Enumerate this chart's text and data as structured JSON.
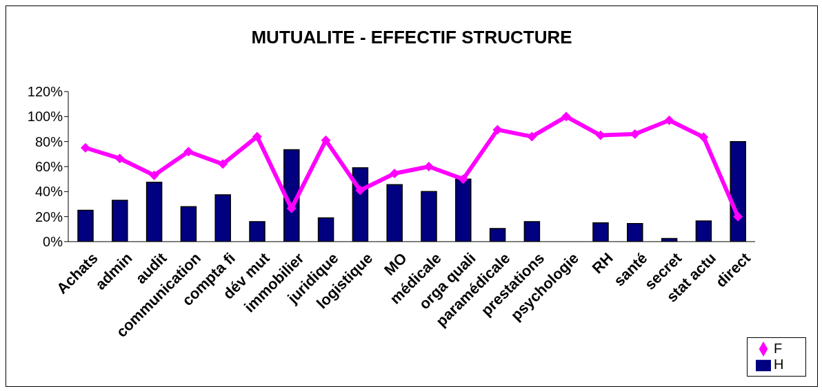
{
  "chart_data": {
    "type": "bar",
    "title": "MUTUALITE - EFFECTIF STRUCTURE",
    "categories": [
      "Achats",
      "admin",
      "audit",
      "communication",
      "compta fi",
      "dév mut",
      "immobilier",
      "juridique",
      "logistique",
      "MO",
      "médicale",
      "orga quali",
      "paramédicale",
      "prestations",
      "psychologie",
      "RH",
      "santé",
      "secret",
      "stat actu",
      "direct"
    ],
    "series": [
      {
        "name": "H",
        "color": "#000080",
        "values": [
          25,
          33,
          47.5,
          28,
          37.5,
          16,
          73.5,
          19,
          59,
          45.5,
          40,
          50,
          10.5,
          16,
          0,
          15,
          14.5,
          2.5,
          16.5,
          80
        ]
      },
      {
        "name": "F",
        "type": "line",
        "color": "#ff00ff",
        "values": [
          75,
          66.5,
          53,
          72,
          62,
          84,
          26.5,
          81,
          41,
          54.5,
          60,
          50,
          89.5,
          84,
          100,
          85,
          86,
          97,
          83.5,
          20
        ]
      }
    ],
    "ylim": [
      0,
      120
    ],
    "yticks": [
      {
        "value": 0,
        "label": "0%"
      },
      {
        "value": 20,
        "label": "20%"
      },
      {
        "value": 40,
        "label": "40%"
      },
      {
        "value": 60,
        "label": "60%"
      },
      {
        "value": 80,
        "label": "80%"
      },
      {
        "value": 100,
        "label": "100%"
      },
      {
        "value": 120,
        "label": "120%"
      }
    ],
    "grid": false,
    "legend": "bottom right",
    "marker": "diamond",
    "line_style": "solid"
  }
}
